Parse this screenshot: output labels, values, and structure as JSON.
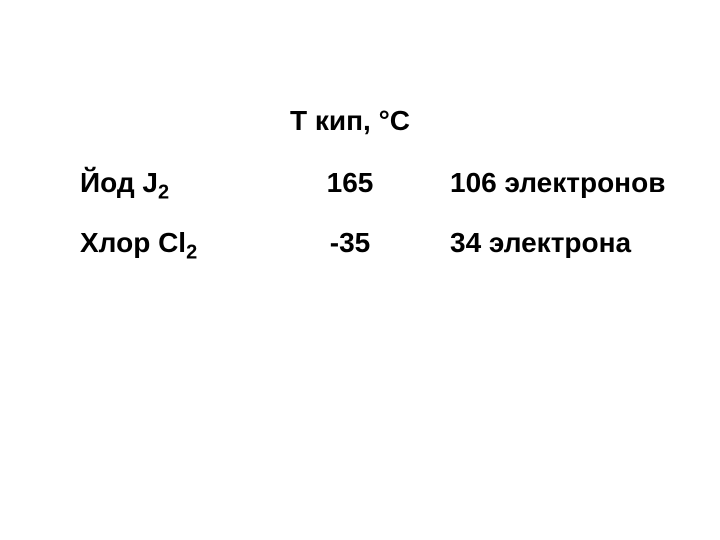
{
  "table": {
    "type": "table",
    "background_color": "#ffffff",
    "text_color": "#000000",
    "font_weight": "bold",
    "font_size": 28,
    "sub_font_size": 20,
    "header": {
      "column2_label": "Т кип, °С"
    },
    "rows": [
      {
        "name_prefix": "Йод J",
        "name_subscript": "2",
        "temperature": "165",
        "electrons": "106 электронов"
      },
      {
        "name_prefix": "Хлор Cl",
        "name_subscript": "2",
        "temperature": "-35",
        "electrons": "34 электрона"
      }
    ]
  }
}
